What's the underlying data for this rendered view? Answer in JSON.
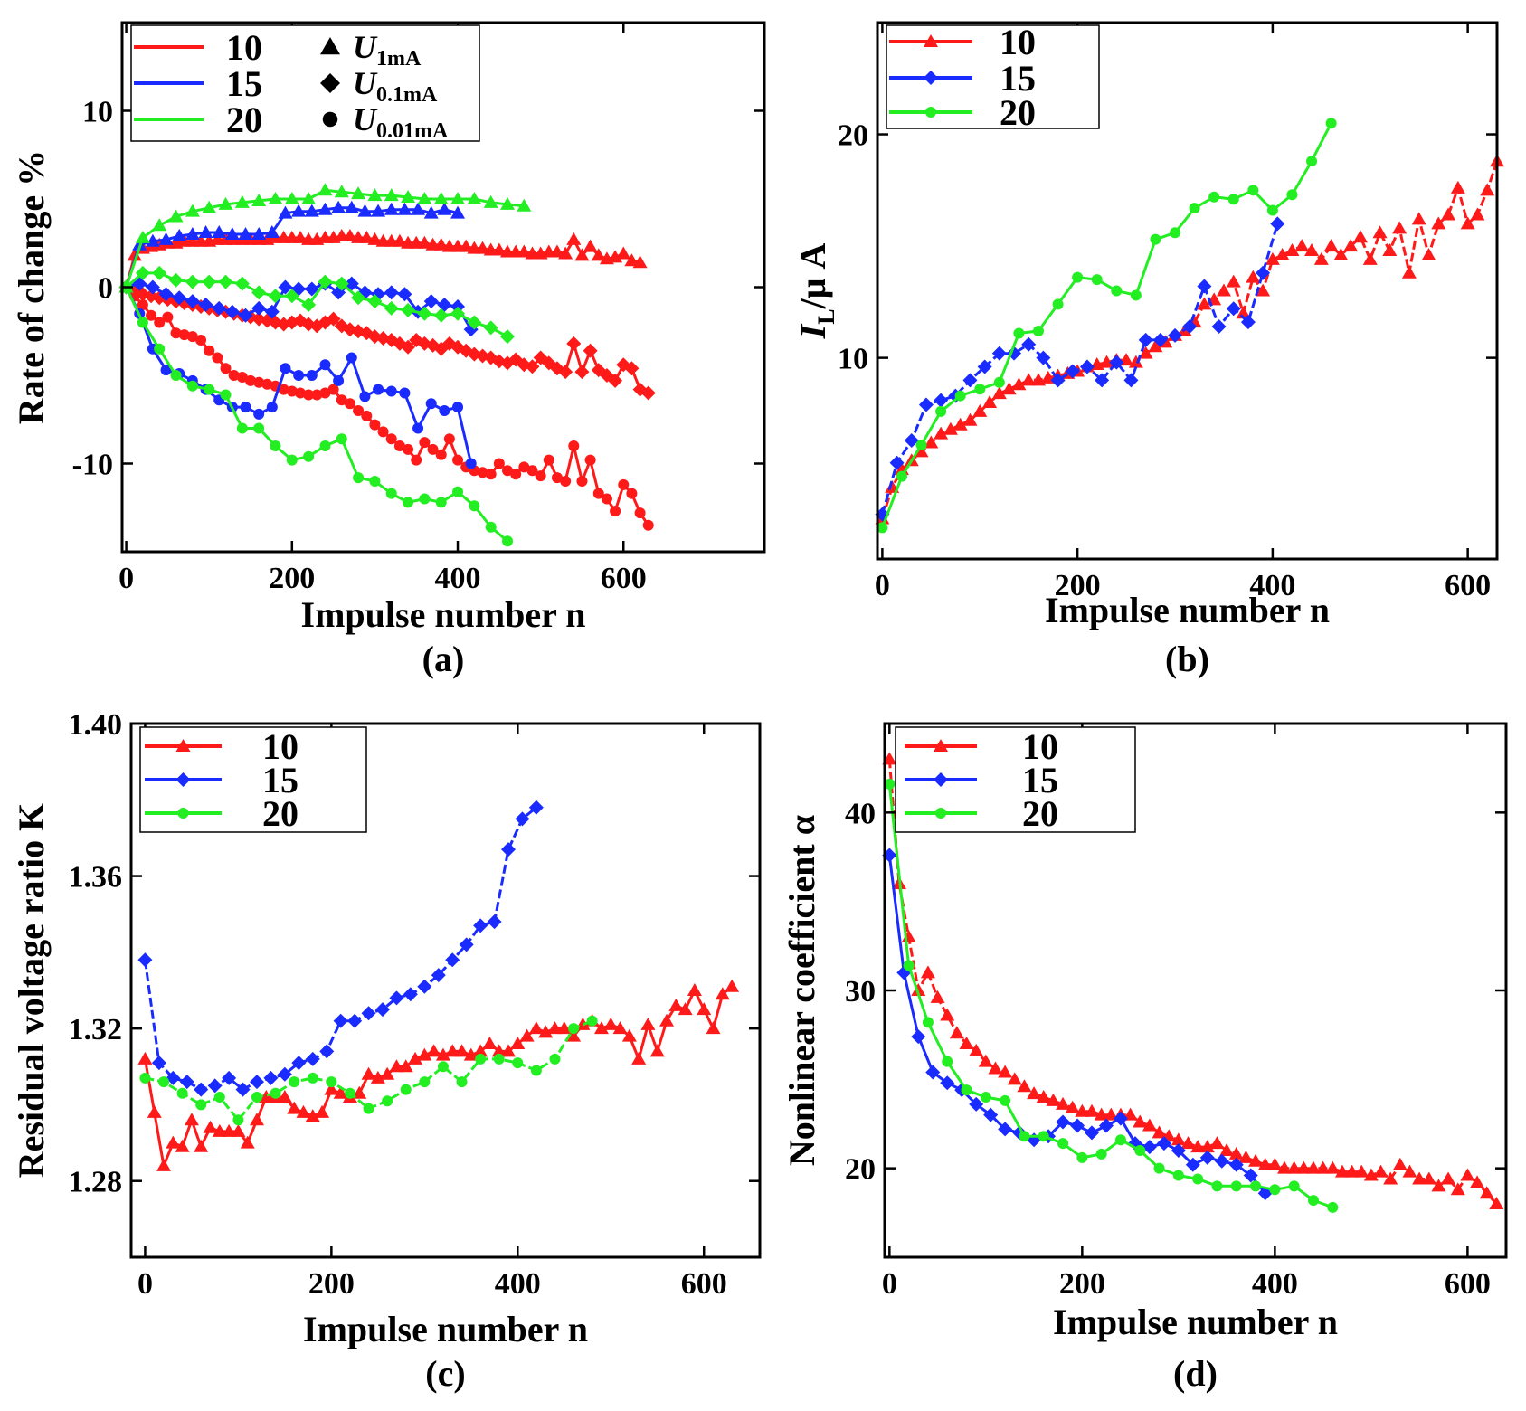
{
  "figure": {
    "colors": {
      "10": "#ff1a1a",
      "15": "#1a2bff",
      "20": "#22ee22"
    }
  },
  "chart_data": [
    {
      "id": "a",
      "type": "line",
      "caption": "(a)",
      "xlabel": "Impulse number n",
      "ylabel": "Rate of change %",
      "xlim": [
        -5,
        770
      ],
      "ylim": [
        -15,
        15
      ],
      "xticks": [
        0,
        200,
        400,
        600
      ],
      "yticks": [
        -10,
        0,
        10
      ],
      "ytick_labels": [
        "-10",
        "0",
        "10"
      ],
      "legend": {
        "lines": [
          {
            "label": "10",
            "key": "10"
          },
          {
            "label": "15",
            "key": "15"
          },
          {
            "label": "20",
            "key": "20"
          }
        ],
        "markers": [
          {
            "symbol": "triangle",
            "main": "U",
            "sub": "1mA"
          },
          {
            "symbol": "diamond",
            "main": "U",
            "sub": "0.1mA"
          },
          {
            "symbol": "circle",
            "main": "U",
            "sub": "0.01mA"
          }
        ]
      },
      "series": [
        {
          "name": "10 U1mA",
          "key": "10",
          "marker": "triangle",
          "step": 10,
          "y": [
            0,
            1.8,
            2.2,
            2.3,
            2.4,
            2.5,
            2.5,
            2.6,
            2.6,
            2.6,
            2.6,
            2.7,
            2.7,
            2.7,
            2.7,
            2.7,
            2.7,
            2.7,
            2.8,
            2.8,
            2.8,
            2.8,
            2.7,
            2.7,
            2.8,
            2.8,
            2.9,
            2.9,
            2.8,
            2.8,
            2.7,
            2.6,
            2.6,
            2.6,
            2.5,
            2.5,
            2.5,
            2.4,
            2.4,
            2.3,
            2.3,
            2.3,
            2.2,
            2.2,
            2.1,
            2.1,
            2.0,
            2.0,
            2.0,
            1.9,
            1.9,
            2.0,
            2.0,
            1.9,
            2.7,
            1.8,
            2.3,
            1.8,
            1.6,
            1.7,
            1.9,
            1.5,
            1.4
          ]
        },
        {
          "name": "10 U0.1mA",
          "key": "10",
          "marker": "diamond",
          "step": 10,
          "y": [
            0,
            -0.2,
            -0.4,
            -0.5,
            -0.6,
            -0.7,
            -0.8,
            -0.9,
            -1.0,
            -1.1,
            -1.2,
            -1.3,
            -1.4,
            -1.5,
            -1.6,
            -1.7,
            -1.8,
            -1.9,
            -2.0,
            -2.1,
            -2.0,
            -1.9,
            -2.1,
            -2.2,
            -2.0,
            -1.8,
            -2.2,
            -2.4,
            -2.5,
            -2.6,
            -2.8,
            -2.9,
            -3.0,
            -3.2,
            -3.4,
            -3.0,
            -3.2,
            -3.3,
            -3.5,
            -3.2,
            -3.4,
            -3.6,
            -3.8,
            -3.9,
            -4.0,
            -4.2,
            -4.3,
            -4.1,
            -4.4,
            -4.5,
            -4.0,
            -4.3,
            -4.6,
            -4.8,
            -3.2,
            -4.8,
            -3.6,
            -4.7,
            -5.0,
            -5.3,
            -4.4,
            -4.6,
            -5.8,
            -6.0
          ]
        },
        {
          "name": "10 U0.01mA",
          "key": "10",
          "marker": "circle",
          "step": 10,
          "y": [
            0,
            -0.5,
            -1.0,
            -1.6,
            -2.0,
            -1.7,
            -2.6,
            -2.7,
            -2.8,
            -3.0,
            -3.6,
            -4.0,
            -4.6,
            -5.0,
            -5.1,
            -5.3,
            -5.4,
            -5.5,
            -5.6,
            -5.8,
            -5.9,
            -6.0,
            -6.1,
            -6.1,
            -6.0,
            -5.8,
            -6.4,
            -6.6,
            -7.0,
            -7.3,
            -7.8,
            -8.2,
            -8.6,
            -9.0,
            -9.2,
            -9.8,
            -8.8,
            -9.2,
            -9.5,
            -8.6,
            -9.8,
            -10.2,
            -10.4,
            -10.5,
            -10.6,
            -10.0,
            -10.4,
            -10.6,
            -10.2,
            -10.4,
            -10.7,
            -9.8,
            -10.8,
            -11.0,
            -9.0,
            -11.0,
            -9.8,
            -11.7,
            -12.0,
            -12.7,
            -11.2,
            -11.7,
            -12.8,
            -13.5
          ]
        },
        {
          "name": "15 U1mA",
          "key": "15",
          "marker": "triangle",
          "step": 16,
          "y": [
            0,
            2.4,
            2.6,
            2.7,
            2.9,
            3.0,
            3.1,
            3.1,
            3.0,
            3.0,
            3.0,
            3.1,
            4.2,
            4.3,
            4.3,
            4.4,
            4.5,
            4.5,
            4.3,
            4.3,
            4.4,
            4.4,
            4.4,
            4.2,
            4.4,
            4.2
          ]
        },
        {
          "name": "15 U0.1mA",
          "key": "15",
          "marker": "diamond",
          "step": 16,
          "y": [
            0,
            0.2,
            0.0,
            -0.4,
            -0.6,
            -0.8,
            -1.0,
            -1.2,
            -1.4,
            -1.6,
            -1.2,
            -1.4,
            0.0,
            -0.1,
            -0.1,
            0.2,
            -0.3,
            0.2,
            -0.3,
            -0.4,
            -0.3,
            -0.4,
            -1.4,
            -0.8,
            -1.0,
            -1.1,
            -2.4
          ]
        },
        {
          "name": "15 U0.01mA",
          "key": "15",
          "marker": "circle",
          "step": 16,
          "y": [
            0,
            -1.5,
            -3.5,
            -4.7,
            -4.9,
            -5.3,
            -5.8,
            -6.4,
            -6.8,
            -6.8,
            -7.2,
            -6.8,
            -4.6,
            -5.0,
            -5.0,
            -4.4,
            -5.3,
            -4.0,
            -6.2,
            -5.8,
            -5.9,
            -6.0,
            -8.0,
            -6.6,
            -7.0,
            -6.8,
            -10.0
          ]
        },
        {
          "name": "20 U1mA",
          "key": "20",
          "marker": "triangle",
          "step": 20,
          "y": [
            0,
            2.8,
            3.5,
            4.0,
            4.3,
            4.5,
            4.7,
            4.8,
            4.9,
            5.0,
            5.0,
            5.0,
            5.5,
            5.4,
            5.3,
            5.2,
            5.2,
            5.1,
            5.0,
            5.0,
            5.0,
            5.0,
            4.8,
            4.7,
            4.6
          ]
        },
        {
          "name": "20 U0.1mA",
          "key": "20",
          "marker": "diamond",
          "step": 20,
          "y": [
            0,
            0.8,
            0.8,
            0.4,
            0.3,
            0.3,
            0.3,
            0.2,
            -0.3,
            -0.5,
            -0.5,
            -1.0,
            0.3,
            0.2,
            -0.6,
            -0.8,
            -1.2,
            -1.3,
            -1.5,
            -1.6,
            -1.5,
            -2.0,
            -2.3,
            -2.8
          ]
        },
        {
          "name": "20 U0.01mA",
          "key": "20",
          "marker": "circle",
          "step": 20,
          "y": [
            0,
            -2.0,
            -3.5,
            -5.0,
            -5.6,
            -5.8,
            -6.1,
            -8.0,
            -8.0,
            -9.0,
            -9.8,
            -9.6,
            -9.0,
            -8.6,
            -10.8,
            -11.0,
            -11.7,
            -12.2,
            -12.0,
            -12.2,
            -11.6,
            -12.4,
            -13.6,
            -14.4
          ]
        }
      ]
    },
    {
      "id": "b",
      "type": "line",
      "caption": "(b)",
      "xlabel": "Impulse number n",
      "ylabel_main": "I",
      "ylabel_sub": "L",
      "ylabel_rest": "/μ A",
      "xlim": [
        -5,
        630
      ],
      "ylim": [
        1,
        25
      ],
      "xticks": [
        0,
        200,
        400,
        600
      ],
      "yticks": [
        10,
        20
      ],
      "ytick_labels": [
        "10",
        "20"
      ],
      "legend": {
        "lines": [
          {
            "label": "10",
            "key": "10",
            "marker": "triangle"
          },
          {
            "label": "15",
            "key": "15",
            "marker": "diamond"
          },
          {
            "label": "20",
            "key": "20",
            "marker": "circle"
          }
        ]
      },
      "series": [
        {
          "name": "10",
          "key": "10",
          "marker": "triangle",
          "step": 10,
          "dashed": true,
          "y": [
            2.8,
            4.2,
            5.0,
            5.4,
            5.8,
            6.2,
            6.6,
            6.8,
            7.0,
            7.2,
            7.6,
            8.0,
            8.4,
            8.6,
            8.8,
            9.0,
            9.0,
            9.1,
            9.2,
            9.3,
            9.4,
            9.6,
            9.7,
            9.8,
            9.9,
            9.9,
            9.8,
            10.2,
            10.5,
            10.7,
            11.0,
            11.2,
            11.6,
            12.4,
            12.6,
            13.0,
            13.4,
            12.0,
            13.6,
            13.0,
            14.4,
            14.6,
            14.8,
            15.0,
            14.8,
            14.4,
            15.0,
            14.6,
            15.0,
            15.4,
            14.4,
            15.6,
            14.8,
            15.8,
            13.8,
            16.2,
            14.6,
            16.0,
            16.4,
            17.6,
            16.0,
            16.4,
            17.5,
            18.8
          ]
        },
        {
          "name": "15",
          "key": "15",
          "marker": "diamond",
          "step": 15,
          "dashed": true,
          "y": [
            3.0,
            5.3,
            6.3,
            7.9,
            8.1,
            8.3,
            9.0,
            9.6,
            10.2,
            10.2,
            10.6,
            10.0,
            9.0,
            9.4,
            9.6,
            9.0,
            9.8,
            9.0,
            10.8,
            10.8,
            11.0,
            11.4,
            13.2,
            11.4,
            12.2,
            11.6,
            13.8,
            16.0
          ]
        },
        {
          "name": "20",
          "key": "20",
          "marker": "circle",
          "step": 20,
          "y": [
            2.4,
            4.7,
            6.1,
            7.6,
            8.3,
            8.6,
            8.9,
            11.1,
            11.2,
            12.4,
            13.6,
            13.5,
            13.0,
            12.8,
            15.3,
            15.6,
            16.7,
            17.2,
            17.1,
            17.5,
            16.6,
            17.3,
            18.8,
            20.5
          ]
        }
      ]
    },
    {
      "id": "c",
      "type": "line",
      "caption": "(c)",
      "xlabel": "Impulse number n",
      "ylabel": "Residual voltage ratio K",
      "xlim": [
        -15,
        660
      ],
      "ylim": [
        1.26,
        1.4
      ],
      "xticks": [
        0,
        200,
        400,
        600
      ],
      "yticks": [
        1.28,
        1.32,
        1.36,
        1.4
      ],
      "ytick_labels": [
        "1.28",
        "1.32",
        "1.36",
        "1.40"
      ],
      "legend": {
        "lines": [
          {
            "label": "10",
            "key": "10",
            "marker": "triangle"
          },
          {
            "label": "15",
            "key": "15",
            "marker": "diamond"
          },
          {
            "label": "20",
            "key": "20",
            "marker": "circle"
          }
        ]
      },
      "series": [
        {
          "name": "10",
          "key": "10",
          "marker": "triangle",
          "step": 10,
          "y": [
            1.312,
            1.298,
            1.284,
            1.29,
            1.289,
            1.296,
            1.289,
            1.294,
            1.293,
            1.293,
            1.293,
            1.29,
            1.296,
            1.302,
            1.302,
            1.302,
            1.299,
            1.298,
            1.297,
            1.298,
            1.304,
            1.303,
            1.302,
            1.303,
            1.308,
            1.307,
            1.308,
            1.31,
            1.31,
            1.312,
            1.313,
            1.314,
            1.313,
            1.314,
            1.314,
            1.313,
            1.314,
            1.316,
            1.314,
            1.314,
            1.316,
            1.318,
            1.32,
            1.319,
            1.32,
            1.32,
            1.318,
            1.321,
            1.322,
            1.32,
            1.321,
            1.32,
            1.318,
            1.312,
            1.321,
            1.314,
            1.322,
            1.326,
            1.325,
            1.33,
            1.325,
            1.32,
            1.329,
            1.331
          ]
        },
        {
          "name": "15",
          "key": "15",
          "marker": "diamond",
          "step": 15,
          "dashed": true,
          "y": [
            1.338,
            1.311,
            1.307,
            1.306,
            1.304,
            1.305,
            1.307,
            1.304,
            1.306,
            1.307,
            1.308,
            1.311,
            1.312,
            1.314,
            1.322,
            1.322,
            1.324,
            1.325,
            1.328,
            1.329,
            1.331,
            1.334,
            1.338,
            1.342,
            1.347,
            1.348,
            1.367,
            1.375,
            1.378
          ]
        },
        {
          "name": "20",
          "key": "20",
          "marker": "circle",
          "step": 20,
          "dashed": true,
          "y": [
            1.307,
            1.306,
            1.303,
            1.3,
            1.302,
            1.296,
            1.302,
            1.303,
            1.306,
            1.307,
            1.306,
            1.303,
            1.299,
            1.301,
            1.304,
            1.306,
            1.31,
            1.306,
            1.312,
            1.312,
            1.311,
            1.309,
            1.312,
            1.32,
            1.322
          ]
        }
      ]
    },
    {
      "id": "d",
      "type": "line",
      "caption": "(d)",
      "xlabel": "Impulse number n",
      "ylabel": "Nonlinear coefficient α",
      "xlim": [
        -5,
        640
      ],
      "ylim": [
        15,
        45
      ],
      "xticks": [
        0,
        200,
        400,
        600
      ],
      "yticks": [
        20,
        30,
        40
      ],
      "ytick_labels": [
        "20",
        "30",
        "40"
      ],
      "legend": {
        "lines": [
          {
            "label": "10",
            "key": "10",
            "marker": "triangle"
          },
          {
            "label": "15",
            "key": "15",
            "marker": "diamond"
          },
          {
            "label": "20",
            "key": "20",
            "marker": "circle"
          }
        ]
      },
      "series": [
        {
          "name": "10",
          "key": "10",
          "marker": "triangle",
          "step": 10,
          "dashed": true,
          "y": [
            43.0,
            36.0,
            33.0,
            30.0,
            31.0,
            29.6,
            28.6,
            27.6,
            27.0,
            26.6,
            26.0,
            25.6,
            25.4,
            25.0,
            24.6,
            24.2,
            24.0,
            23.8,
            23.6,
            23.4,
            23.2,
            23.2,
            23.0,
            23.0,
            23.0,
            23.0,
            22.6,
            22.4,
            22.0,
            21.8,
            21.6,
            21.4,
            21.2,
            21.2,
            21.4,
            21.0,
            20.8,
            20.6,
            20.4,
            20.2,
            20.2,
            20.0,
            20.0,
            20.0,
            20.0,
            20.0,
            20.0,
            19.8,
            19.8,
            19.8,
            19.6,
            19.8,
            19.4,
            20.2,
            19.8,
            19.4,
            19.4,
            19.0,
            19.4,
            18.8,
            19.6,
            19.2,
            18.6,
            18.0
          ]
        },
        {
          "name": "15",
          "key": "15",
          "marker": "diamond",
          "step": 15,
          "y": [
            37.6,
            31.0,
            27.4,
            25.4,
            24.8,
            24.4,
            23.6,
            23.0,
            22.2,
            22.0,
            21.6,
            21.8,
            22.6,
            22.4,
            22.0,
            22.4,
            22.8,
            21.4,
            21.2,
            21.4,
            21.0,
            20.2,
            20.6,
            20.4,
            20.2,
            19.6,
            18.6
          ]
        },
        {
          "name": "20",
          "key": "20",
          "marker": "circle",
          "step": 20,
          "y": [
            41.6,
            31.4,
            28.2,
            26.0,
            24.4,
            24.0,
            23.8,
            21.8,
            21.8,
            21.4,
            20.6,
            20.8,
            21.6,
            21.0,
            20.0,
            19.6,
            19.4,
            19.0,
            19.0,
            19.0,
            18.8,
            19.0,
            18.2,
            17.8
          ]
        }
      ]
    }
  ]
}
